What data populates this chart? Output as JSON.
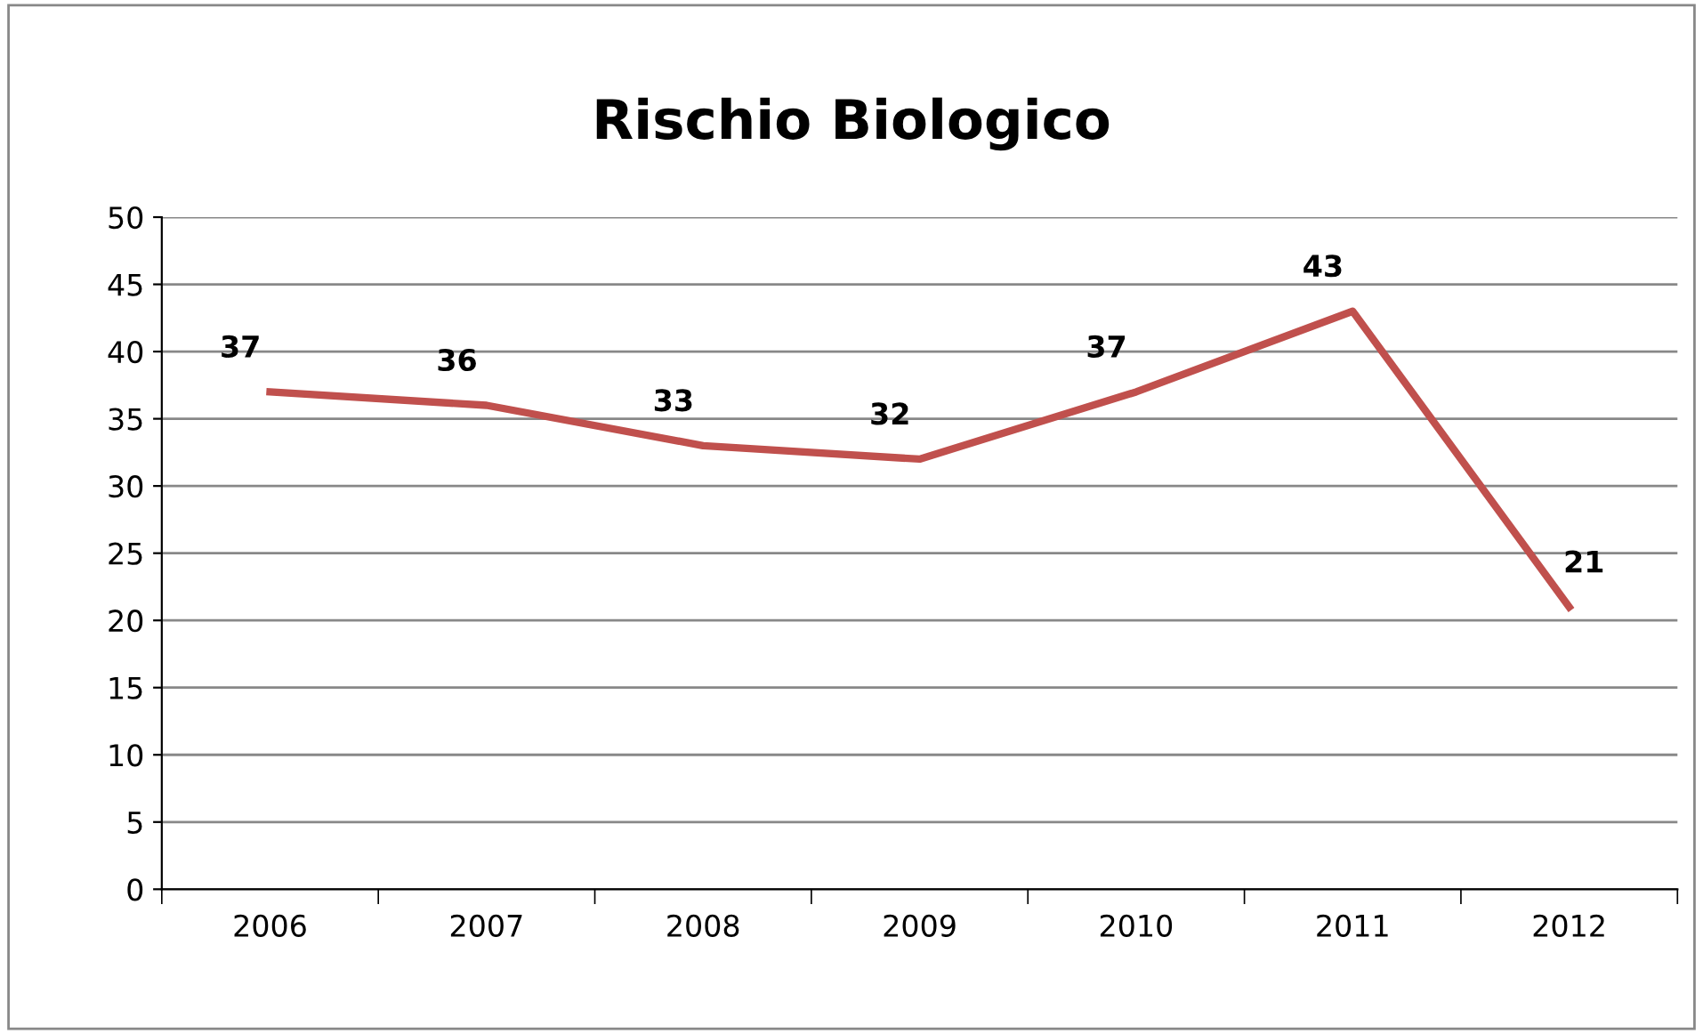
{
  "chart_data": {
    "type": "line",
    "title": "Rischio Biologico",
    "categories": [
      "2006",
      "2007",
      "2008",
      "2009",
      "2010",
      "2011",
      "2012"
    ],
    "series": [
      {
        "color": "#c0504d",
        "values": [
          37,
          36,
          33,
          32,
          37,
          43,
          21
        ]
      }
    ],
    "ylim": [
      0,
      50
    ],
    "yticks": [
      0,
      5,
      10,
      15,
      20,
      25,
      30,
      35,
      40,
      45,
      50
    ],
    "grid": "y",
    "data_labels": true,
    "marker": "none",
    "line_style": "solid",
    "legend": false
  }
}
